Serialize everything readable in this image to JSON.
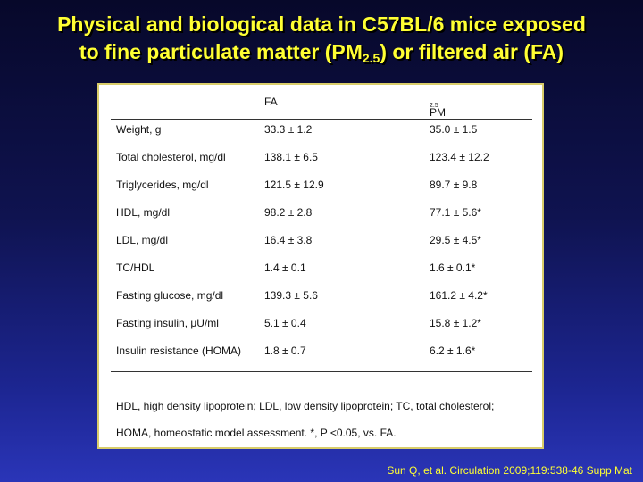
{
  "title": {
    "line1": "Physical and biological data in C57BL/6 mice exposed",
    "line2_pre": "to fine particulate matter (PM",
    "line2_sub": "2.5",
    "line2_post": ") or filtered air (FA)"
  },
  "table": {
    "col_fa": "FA",
    "col_pm": "PM",
    "col_pm_sub": "2.5",
    "rows": [
      {
        "label": "Weight, g",
        "fa": "33.3 ± 1.2",
        "pm": "35.0 ± 1.5"
      },
      {
        "label": "Total cholesterol, mg/dl",
        "fa": "138.1 ± 6.5",
        "pm": "123.4 ± 12.2"
      },
      {
        "label": "Triglycerides, mg/dl",
        "fa": "121.5 ± 12.9",
        "pm": "89.7 ± 9.8"
      },
      {
        "label": "HDL, mg/dl",
        "fa": "98.2 ± 2.8",
        "pm": "77.1 ± 5.6*"
      },
      {
        "label": "LDL, mg/dl",
        "fa": "16.4 ± 3.8",
        "pm": "29.5 ± 4.5*"
      },
      {
        "label": "TC/HDL",
        "fa": "1.4 ± 0.1",
        "pm": "1.6 ± 0.1*"
      },
      {
        "label": "Fasting glucose, mg/dl",
        "fa": "139.3 ± 5.6",
        "pm": "161.2 ± 4.2*"
      },
      {
        "label": "Fasting insulin, μU/ml",
        "fa": "5.1 ± 0.4",
        "pm": "15.8 ± 1.2*"
      },
      {
        "label": "Insulin resistance (HOMA)",
        "fa": "1.8 ± 0.7",
        "pm": "6.2 ± 1.6*"
      }
    ],
    "footnote1": "HDL, high density lipoprotein; LDL, low density lipoprotein; TC, total cholesterol;",
    "footnote2": "HOMA, homeostatic model assessment. *, P <0.05, vs. FA."
  },
  "citation": "Sun Q, et al. Circulation 2009;119:538-46 Supp Mat"
}
